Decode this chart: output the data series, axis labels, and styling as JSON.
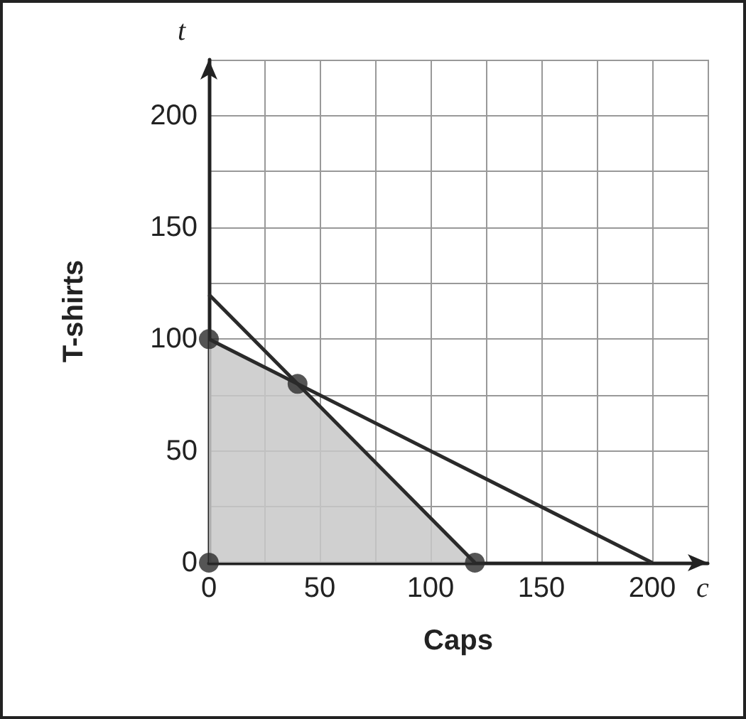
{
  "chart_data": {
    "type": "line",
    "xlabel": "Caps",
    "ylabel": "T-shirts",
    "annotations": [
      "t",
      "c"
    ],
    "series": [
      {
        "type": "area",
        "color": "#c8c8c8",
        "x": [
          0,
          0,
          40,
          120
        ],
        "values": [
          0,
          100,
          80,
          0
        ]
      },
      {
        "color": "#2a2a2a",
        "x": [
          0,
          120
        ],
        "values": [
          120,
          0
        ]
      },
      {
        "color": "#2a2a2a",
        "x": [
          0,
          200
        ],
        "values": [
          100,
          0
        ]
      },
      {
        "type": "scatter",
        "color": "#2a2a2a",
        "marker": "circle",
        "x": [
          0,
          0,
          40,
          120
        ],
        "values": [
          0,
          100,
          80,
          0
        ]
      }
    ],
    "xlim": [
      0,
      225
    ],
    "ylim": [
      0,
      225
    ],
    "xticks": [
      0,
      {
        "value": 25,
        "label": null
      },
      50,
      {
        "value": 75,
        "label": null
      },
      100,
      {
        "value": 125,
        "label": null
      },
      150,
      {
        "value": 175,
        "label": null
      },
      200,
      {
        "value": 225,
        "label": null
      }
    ],
    "yticks": [
      0,
      {
        "value": 25,
        "label": null
      },
      50,
      {
        "value": 75,
        "label": null
      },
      100,
      {
        "value": 125,
        "label": null
      },
      150,
      {
        "value": 175,
        "label": null
      },
      200,
      {
        "value": 225,
        "label": null
      }
    ],
    "grid": true,
    "line_style": "solid"
  }
}
